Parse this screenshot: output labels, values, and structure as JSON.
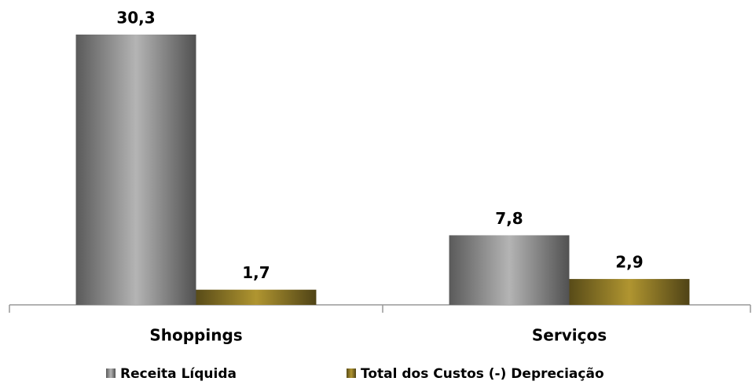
{
  "chart_data": {
    "type": "bar",
    "categories": [
      "Shoppings",
      "Serviços"
    ],
    "series": [
      {
        "name": "Receita Líquida",
        "color": "#b4b4b4",
        "values": [
          30.3,
          7.8
        ],
        "value_labels": [
          "30,3",
          "7,8"
        ]
      },
      {
        "name": "Total dos Custos (-) Depreciação",
        "color": "#b09530",
        "values": [
          1.7,
          2.9
        ],
        "value_labels": [
          "1,7",
          "2,9"
        ]
      }
    ]
  }
}
